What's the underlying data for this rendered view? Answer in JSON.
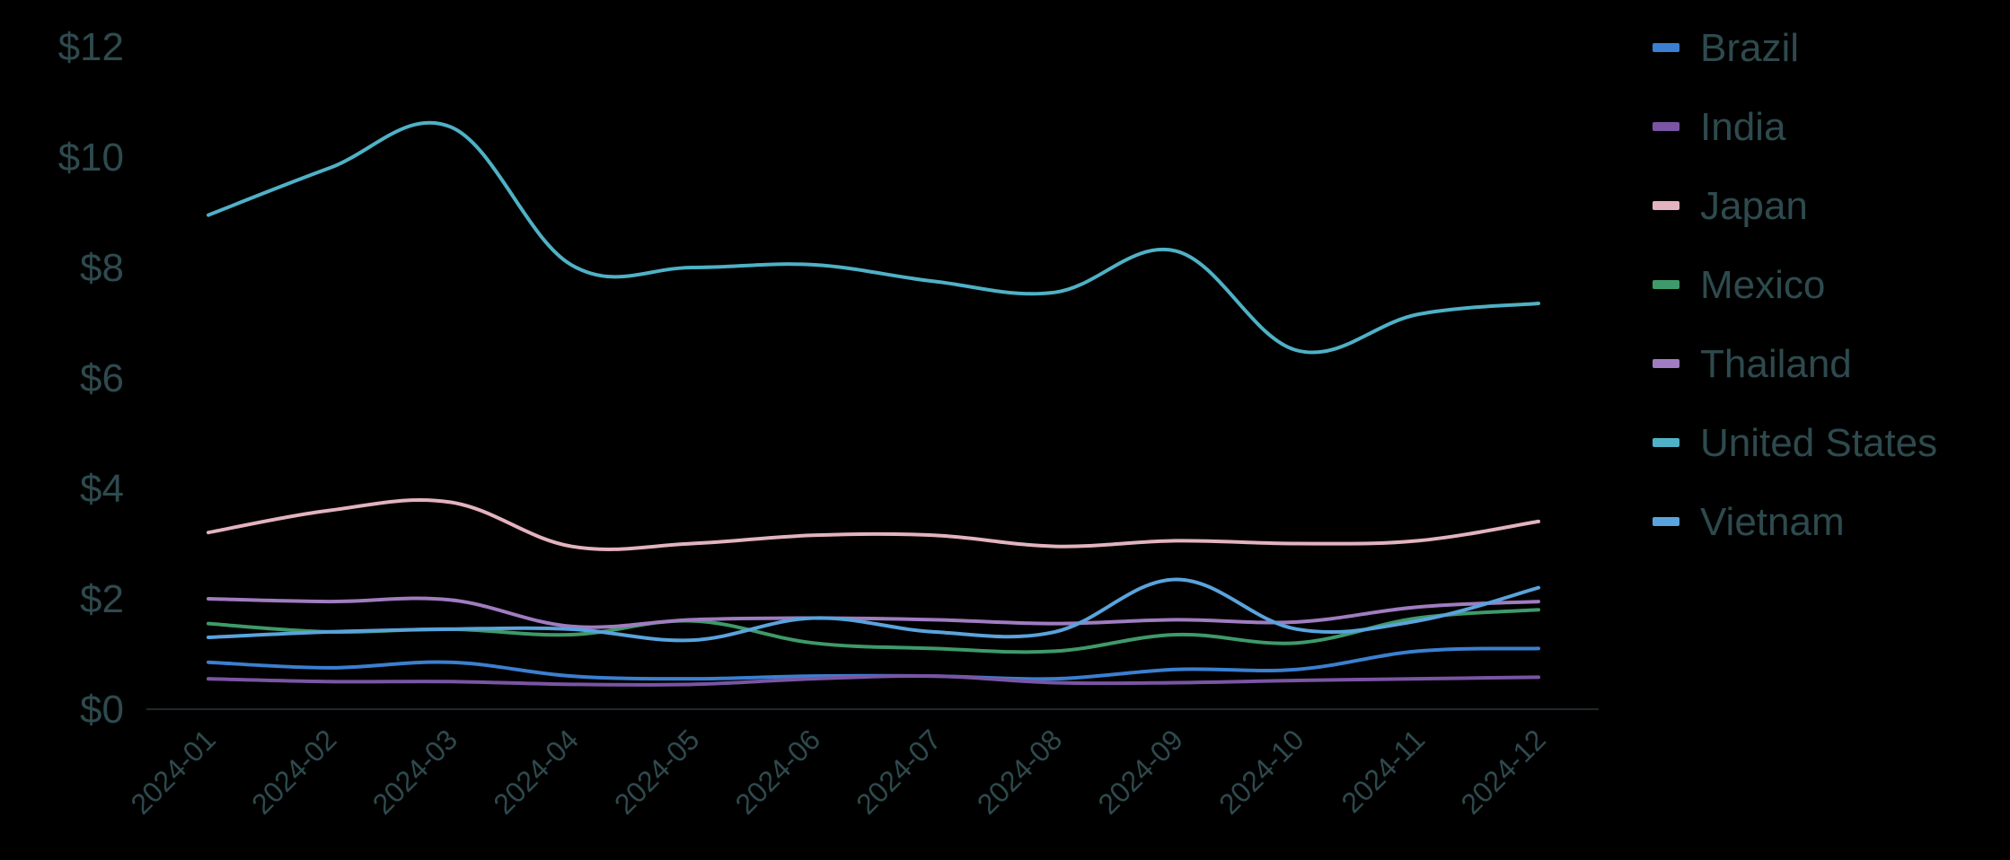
{
  "chart_data": {
    "type": "line",
    "title": "",
    "xlabel": "",
    "ylabel": "",
    "ylim": [
      0,
      12
    ],
    "y_ticks": [
      "$0",
      "$2",
      "$4",
      "$6",
      "$8",
      "$10",
      "$12"
    ],
    "y_tick_values": [
      0,
      2,
      4,
      6,
      8,
      10,
      12
    ],
    "grid": false,
    "legend_position": "right",
    "categories": [
      "2024-01",
      "2024-02",
      "2024-03",
      "2024-04",
      "2024-05",
      "2024-06",
      "2024-07",
      "2024-08",
      "2024-09",
      "2024-10",
      "2024-11",
      "2024-12"
    ],
    "series": [
      {
        "name": "Brazil",
        "color": "#3b7fd0",
        "values": [
          0.85,
          0.75,
          0.85,
          0.6,
          0.55,
          0.6,
          0.6,
          0.55,
          0.72,
          0.72,
          1.05,
          1.1
        ]
      },
      {
        "name": "India",
        "color": "#7a55a3",
        "values": [
          0.55,
          0.5,
          0.5,
          0.45,
          0.45,
          0.55,
          0.6,
          0.48,
          0.48,
          0.52,
          0.55,
          0.58
        ]
      },
      {
        "name": "Japan",
        "color": "#e3b3bf",
        "values": [
          3.2,
          3.6,
          3.75,
          2.95,
          3.0,
          3.15,
          3.15,
          2.95,
          3.05,
          3.0,
          3.05,
          3.4
        ]
      },
      {
        "name": "Mexico",
        "color": "#3e9a6a",
        "values": [
          1.55,
          1.4,
          1.45,
          1.35,
          1.6,
          1.2,
          1.1,
          1.05,
          1.35,
          1.2,
          1.65,
          1.8
        ]
      },
      {
        "name": "Thailand",
        "color": "#a07cc0",
        "values": [
          2.0,
          1.95,
          1.98,
          1.5,
          1.62,
          1.65,
          1.62,
          1.55,
          1.62,
          1.58,
          1.85,
          1.95
        ]
      },
      {
        "name": "United States",
        "color": "#4fb1c6",
        "values": [
          8.95,
          9.8,
          10.55,
          8.05,
          8.0,
          8.05,
          7.75,
          7.55,
          8.3,
          6.5,
          7.15,
          7.35
        ]
      },
      {
        "name": "Vietnam",
        "color": "#5aa3dc",
        "values": [
          1.3,
          1.4,
          1.45,
          1.45,
          1.25,
          1.65,
          1.4,
          1.4,
          2.35,
          1.45,
          1.6,
          2.2
        ]
      }
    ]
  }
}
